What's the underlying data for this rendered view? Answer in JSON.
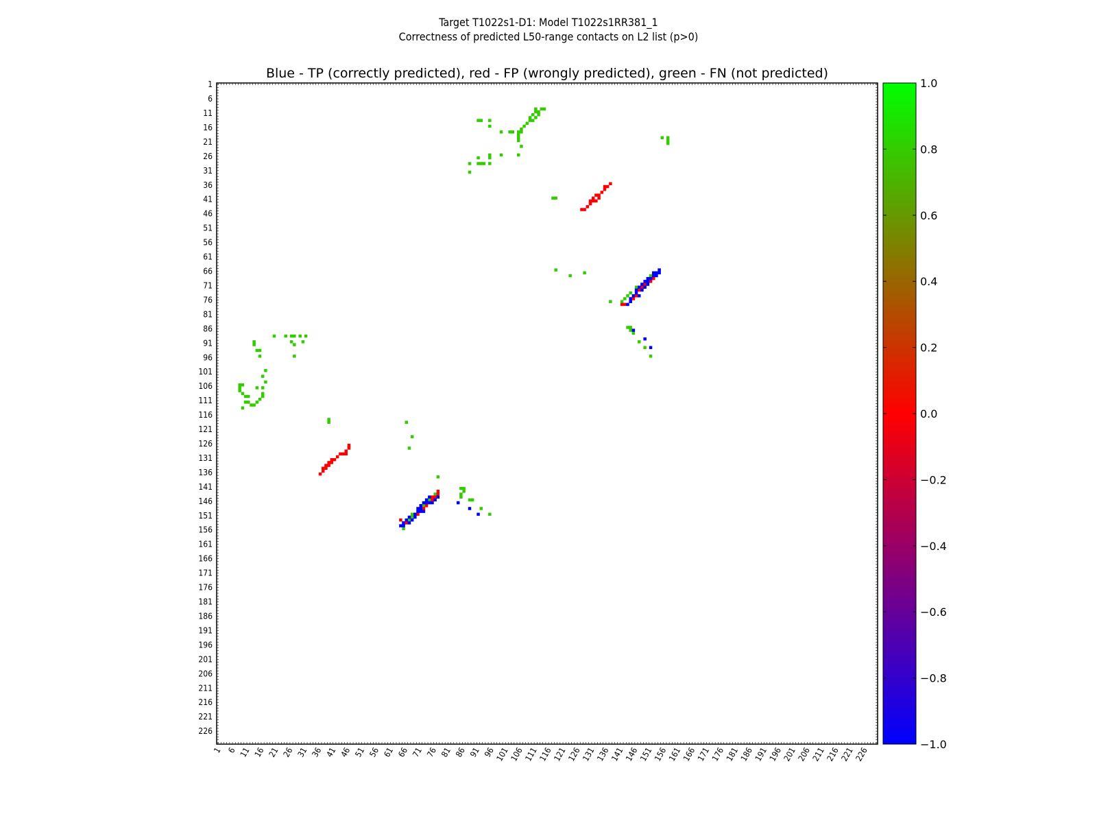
{
  "title_line1": "Target T1022s1-D1: Model T1022s1RR381_1",
  "title_line2": "Correctness of predicted L50-range contacts on L2 list (p>0)",
  "chart_data": {
    "type": "heatmap",
    "title": "Blue - TP (correctly predicted), red - FP (wrongly predicted), green - FN (not predicted)",
    "xlim": [
      1,
      230
    ],
    "ylim": [
      1,
      230
    ],
    "ticks": [
      "1",
      "6",
      "11",
      "16",
      "21",
      "26",
      "31",
      "36",
      "41",
      "46",
      "51",
      "56",
      "61",
      "66",
      "71",
      "76",
      "81",
      "86",
      "91",
      "96",
      "101",
      "106",
      "111",
      "116",
      "121",
      "126",
      "131",
      "136",
      "141",
      "146",
      "151",
      "156",
      "161",
      "166",
      "171",
      "176",
      "181",
      "186",
      "191",
      "196",
      "201",
      "206",
      "211",
      "216",
      "221",
      "226"
    ],
    "colors": {
      "TP": "#0000ff",
      "FP": "#ff0000",
      "FN": "#33cc00"
    },
    "colorbar": {
      "range": [
        -1.0,
        1.0
      ],
      "ticks": [
        "1.0",
        "0.8",
        "0.6",
        "0.4",
        "0.2",
        "0.0",
        "−0.2",
        "−0.4",
        "−0.6",
        "−0.8",
        "−1.0"
      ],
      "gradient": [
        "#00ff00",
        "#ff0000",
        "#0000ff"
      ]
    },
    "fn_cells": [
      [
        111,
        9
      ],
      [
        111,
        10
      ],
      [
        112,
        11
      ],
      [
        111,
        12
      ],
      [
        110,
        13
      ],
      [
        109,
        13
      ],
      [
        108,
        14
      ],
      [
        107,
        15
      ],
      [
        106,
        16
      ],
      [
        106,
        17
      ],
      [
        105,
        18
      ],
      [
        105,
        19
      ],
      [
        105,
        20
      ],
      [
        106,
        22
      ],
      [
        109,
        12
      ],
      [
        110,
        11
      ],
      [
        112,
        10
      ],
      [
        113,
        9
      ],
      [
        114,
        9
      ],
      [
        91,
        13
      ],
      [
        92,
        13
      ],
      [
        95,
        13
      ],
      [
        95,
        15
      ],
      [
        99,
        17
      ],
      [
        102,
        17
      ],
      [
        103,
        17
      ],
      [
        105,
        17
      ],
      [
        95,
        25
      ],
      [
        95,
        26
      ],
      [
        91,
        26
      ],
      [
        99,
        25
      ],
      [
        105,
        25
      ],
      [
        92,
        28
      ],
      [
        93,
        28
      ],
      [
        95,
        28
      ],
      [
        88,
        28
      ],
      [
        88,
        31
      ],
      [
        91,
        28
      ],
      [
        155,
        19
      ],
      [
        157,
        19
      ],
      [
        157,
        20
      ],
      [
        157,
        21
      ],
      [
        117,
        40
      ],
      [
        118,
        40
      ],
      [
        13,
        90
      ],
      [
        13,
        91
      ],
      [
        14,
        93
      ],
      [
        15,
        95
      ],
      [
        15,
        93
      ],
      [
        27,
        88
      ],
      [
        29,
        88
      ],
      [
        30,
        90
      ],
      [
        31,
        88
      ],
      [
        27,
        91
      ],
      [
        27,
        95
      ],
      [
        17,
        100
      ],
      [
        16,
        102
      ],
      [
        17,
        104
      ],
      [
        16,
        106
      ],
      [
        16,
        108
      ],
      [
        16,
        109
      ],
      [
        15,
        110
      ],
      [
        14,
        111
      ],
      [
        13,
        112
      ],
      [
        12,
        112
      ],
      [
        11,
        111
      ],
      [
        9,
        113
      ],
      [
        10,
        111
      ],
      [
        8,
        106
      ],
      [
        8,
        107
      ],
      [
        9,
        108
      ],
      [
        10,
        109
      ],
      [
        11,
        109
      ],
      [
        14,
        106
      ],
      [
        8,
        105
      ],
      [
        9,
        105
      ],
      [
        20,
        88
      ],
      [
        24,
        88
      ],
      [
        26,
        88
      ],
      [
        26,
        90
      ],
      [
        39,
        117
      ],
      [
        39,
        118
      ],
      [
        66,
        118
      ],
      [
        68,
        123
      ],
      [
        67,
        127
      ],
      [
        77,
        137
      ],
      [
        65,
        155
      ],
      [
        85,
        141
      ],
      [
        86,
        141
      ],
      [
        86,
        142
      ],
      [
        85,
        143
      ],
      [
        85,
        144
      ],
      [
        88,
        145
      ],
      [
        89,
        145
      ],
      [
        92,
        148
      ],
      [
        95,
        150
      ],
      [
        67,
        152
      ],
      [
        68,
        151
      ],
      [
        68,
        150
      ],
      [
        70,
        149
      ],
      [
        72,
        147
      ],
      [
        74,
        145
      ],
      [
        75,
        144
      ],
      [
        76,
        143
      ],
      [
        118,
        65
      ],
      [
        123,
        67
      ],
      [
        128,
        66
      ],
      [
        137,
        76
      ],
      [
        143,
        85
      ],
      [
        144,
        86
      ],
      [
        144,
        85
      ],
      [
        145,
        87
      ],
      [
        147,
        90
      ],
      [
        149,
        92
      ],
      [
        151,
        95
      ],
      [
        154,
        65
      ],
      [
        153,
        66
      ],
      [
        151,
        67
      ],
      [
        150,
        68
      ],
      [
        148,
        70
      ],
      [
        146,
        71
      ],
      [
        144,
        73
      ],
      [
        142,
        75
      ],
      [
        141,
        76
      ],
      [
        143,
        74
      ]
    ],
    "fp_cells": [
      [
        127,
        44
      ],
      [
        128,
        44
      ],
      [
        129,
        43
      ],
      [
        130,
        42
      ],
      [
        130,
        41
      ],
      [
        131,
        40
      ],
      [
        132,
        41
      ],
      [
        133,
        40
      ],
      [
        133,
        39
      ],
      [
        134,
        38
      ],
      [
        135,
        37
      ],
      [
        135,
        36
      ],
      [
        136,
        36
      ],
      [
        137,
        35
      ],
      [
        132,
        39
      ],
      [
        131,
        41
      ],
      [
        36,
        136
      ],
      [
        37,
        135
      ],
      [
        37,
        134
      ],
      [
        38,
        134
      ],
      [
        38,
        133
      ],
      [
        39,
        133
      ],
      [
        39,
        132
      ],
      [
        40,
        132
      ],
      [
        40,
        131
      ],
      [
        41,
        131
      ],
      [
        42,
        130
      ],
      [
        43,
        129
      ],
      [
        44,
        129
      ],
      [
        45,
        128
      ],
      [
        46,
        127
      ],
      [
        46,
        126
      ],
      [
        45,
        129
      ],
      [
        64,
        152
      ],
      [
        65,
        153
      ],
      [
        66,
        153
      ],
      [
        69,
        150
      ],
      [
        70,
        150
      ],
      [
        72,
        148
      ],
      [
        73,
        147
      ],
      [
        75,
        144
      ],
      [
        76,
        144
      ],
      [
        77,
        143
      ],
      [
        77,
        142
      ],
      [
        75,
        145
      ],
      [
        141,
        77
      ],
      [
        142,
        77
      ],
      [
        144,
        76
      ],
      [
        145,
        75
      ],
      [
        147,
        72
      ],
      [
        148,
        71
      ],
      [
        149,
        70
      ],
      [
        151,
        69
      ],
      [
        152,
        68
      ],
      [
        146,
        74
      ]
    ],
    "tp_cells": [
      [
        64,
        154
      ],
      [
        65,
        154
      ],
      [
        65,
        153
      ],
      [
        66,
        152
      ],
      [
        67,
        151
      ],
      [
        68,
        152
      ],
      [
        69,
        151
      ],
      [
        69,
        150
      ],
      [
        70,
        149
      ],
      [
        70,
        148
      ],
      [
        71,
        149
      ],
      [
        71,
        148
      ],
      [
        71,
        147
      ],
      [
        72,
        146
      ],
      [
        73,
        146
      ],
      [
        73,
        145
      ],
      [
        74,
        144
      ],
      [
        74,
        146
      ],
      [
        75,
        146
      ],
      [
        76,
        145
      ],
      [
        77,
        144
      ],
      [
        72,
        149
      ],
      [
        67,
        153
      ],
      [
        84,
        146
      ],
      [
        88,
        148
      ],
      [
        91,
        150
      ],
      [
        143,
        77
      ],
      [
        144,
        76
      ],
      [
        144,
        75
      ],
      [
        145,
        74
      ],
      [
        146,
        73
      ],
      [
        147,
        74
      ],
      [
        146,
        72
      ],
      [
        147,
        71
      ],
      [
        148,
        72
      ],
      [
        148,
        70
      ],
      [
        149,
        71
      ],
      [
        149,
        69
      ],
      [
        150,
        69
      ],
      [
        150,
        68
      ],
      [
        151,
        68
      ],
      [
        152,
        67
      ],
      [
        153,
        67
      ],
      [
        153,
        66
      ],
      [
        154,
        66
      ],
      [
        154,
        65
      ],
      [
        152,
        66
      ],
      [
        150,
        70
      ],
      [
        145,
        86
      ],
      [
        149,
        89
      ],
      [
        151,
        92
      ]
    ]
  }
}
